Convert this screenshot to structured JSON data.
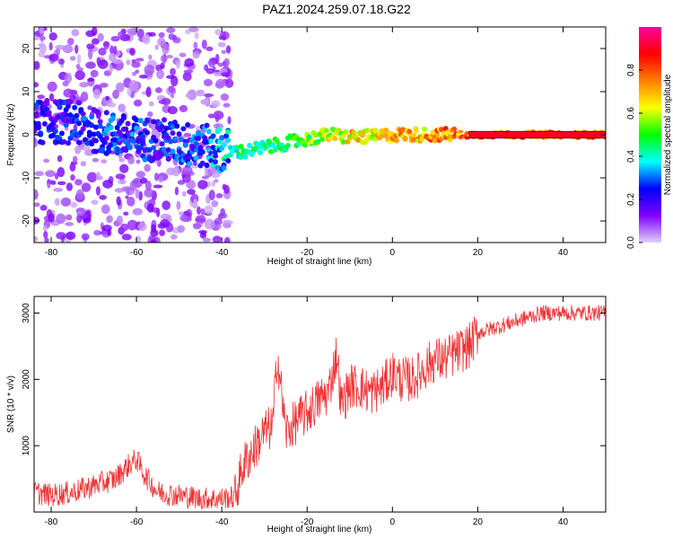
{
  "title": "PAZ1.2024.259.07.18.G22",
  "chart_data": [
    {
      "type": "heatmap",
      "xlabel": "Height of straight line (km)",
      "ylabel": "Frequency (Hz)",
      "xlim": [
        -84,
        50
      ],
      "ylim": [
        -25,
        25
      ],
      "xticks": [
        -80,
        -60,
        -40,
        -20,
        0,
        20,
        40
      ],
      "yticks": [
        -20,
        -10,
        0,
        10,
        20
      ],
      "colorbar": {
        "label": "Normalized spectral amplitude",
        "range": [
          0.0,
          1.0
        ],
        "ticks": [
          0.0,
          0.2,
          0.4,
          0.6,
          0.8
        ],
        "colormap": [
          "#e0d0f8",
          "#8000ff",
          "#0000ff",
          "#00ffff",
          "#00ff00",
          "#ffff00",
          "#ff8000",
          "#ff0000",
          "#ff00a0"
        ]
      },
      "ridge": {
        "x": [
          -75,
          -70,
          -65,
          -60,
          -55,
          -50,
          -45,
          -40,
          -35,
          -30,
          -25,
          -20,
          -15,
          -10,
          -5,
          0,
          5,
          10,
          15,
          20,
          30,
          40,
          50
        ],
        "freq": [
          3,
          1,
          0,
          -1,
          -1,
          -2,
          -2.5,
          -3.5,
          -4,
          -3,
          -2,
          -1,
          0,
          -0.5,
          -0.5,
          0,
          0,
          0,
          0,
          0,
          0,
          0,
          0
        ],
        "amplitude": [
          0.3,
          0.35,
          0.35,
          0.35,
          0.3,
          0.35,
          0.35,
          0.45,
          0.5,
          0.5,
          0.55,
          0.6,
          0.7,
          0.75,
          0.75,
          0.8,
          0.8,
          0.85,
          0.9,
          0.9,
          0.9,
          0.9,
          0.9
        ]
      }
    },
    {
      "type": "line",
      "xlabel": "Height of straight line (km)",
      "ylabel": "SNR (10 * v/v)",
      "xlim": [
        -84,
        50
      ],
      "ylim": [
        0,
        3250
      ],
      "xticks": [
        -80,
        -60,
        -40,
        -20,
        0,
        20,
        40
      ],
      "yticks": [
        1000,
        2000,
        3000
      ],
      "color": "#ee3333",
      "x": [
        -84,
        -80,
        -75,
        -70,
        -65,
        -62,
        -60,
        -58,
        -55,
        -50,
        -45,
        -40,
        -37,
        -35,
        -32,
        -30,
        -28,
        -27,
        -25,
        -22,
        -20,
        -17,
        -15,
        -13,
        -12,
        -10,
        -8,
        -5,
        -2,
        0,
        2,
        5,
        8,
        10,
        12,
        15,
        18,
        20,
        25,
        30,
        35,
        40,
        45,
        50
      ],
      "y": [
        300,
        250,
        300,
        400,
        500,
        700,
        800,
        550,
        300,
        250,
        200,
        200,
        220,
        700,
        1000,
        1200,
        1300,
        2400,
        1200,
        1400,
        1500,
        1700,
        1800,
        2400,
        1600,
        1900,
        1900,
        1800,
        1900,
        2100,
        2000,
        2000,
        2200,
        2300,
        2300,
        2400,
        2500,
        2700,
        2800,
        2900,
        3000,
        3000,
        3000,
        3000
      ]
    }
  ]
}
